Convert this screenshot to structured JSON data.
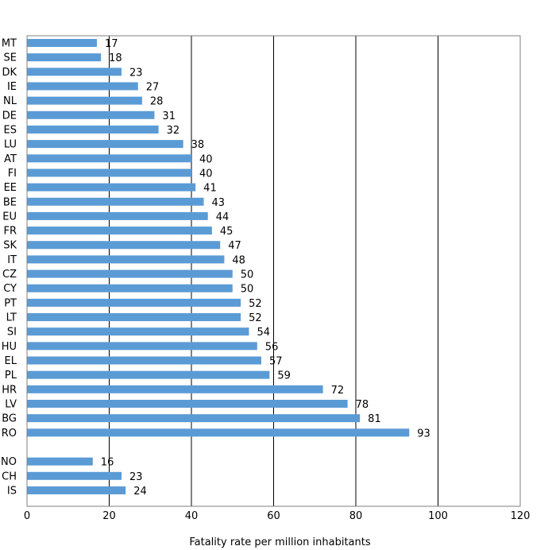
{
  "chart_data": {
    "type": "bar",
    "orientation": "horizontal",
    "xlabel": "Fatality rate per million inhabitants",
    "xlim": [
      0,
      120
    ],
    "xticks": [
      0,
      20,
      40,
      60,
      80,
      100,
      120
    ],
    "grid": "vertical",
    "bar_color": "#5b9bd5",
    "categories": [
      "MT",
      "SE",
      "DK",
      "IE",
      "NL",
      "DE",
      "ES",
      "LU",
      "AT",
      "FI",
      "EE",
      "BE",
      "EU",
      "FR",
      "SK",
      "IT",
      "CZ",
      "CY",
      "PT",
      "LT",
      "SI",
      "HU",
      "EL",
      "PL",
      "HR",
      "LV",
      "BG",
      "RO",
      "",
      "NO",
      "CH",
      "IS"
    ],
    "values": [
      17,
      18,
      23,
      27,
      28,
      31,
      32,
      38,
      40,
      40,
      41,
      43,
      44,
      45,
      47,
      48,
      50,
      50,
      52,
      52,
      54,
      56,
      57,
      59,
      72,
      78,
      81,
      93,
      null,
      16,
      23,
      24
    ]
  }
}
